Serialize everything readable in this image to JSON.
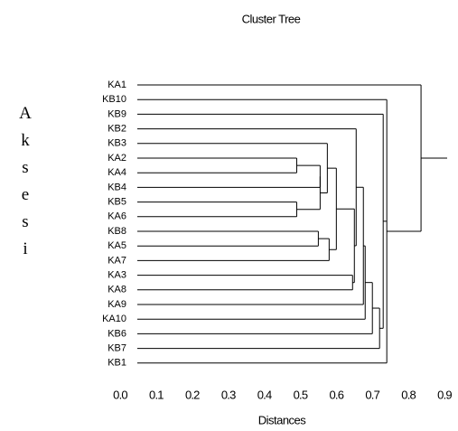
{
  "chart_data": {
    "type": "dendrogram",
    "title": "Cluster Tree",
    "xlabel": "Distances",
    "ylabel": "Aksesi",
    "xlim": [
      0,
      0.9
    ],
    "xticks": [
      {
        "value": 0,
        "label": "0.0"
      },
      0.1,
      0.2,
      0.3,
      0.4,
      0.5,
      0.6,
      0.7,
      0.8,
      0.9
    ],
    "color": "#000000",
    "tree": {
      "height": 0.835,
      "children": [
        {
          "label": "KA1"
        },
        {
          "height": 0.74,
          "children": [
            {
              "label": "KB10"
            },
            {
              "height": 0.73,
              "children": [
                {
                  "label": "KB9"
                },
                {
                  "height": 0.72,
                  "children": [
                    {
                      "height": 0.7,
                      "children": [
                        {
                          "height": 0.68,
                          "children": [
                            {
                              "height": 0.675,
                              "children": [
                                {
                                  "height": 0.655,
                                  "children": [
                                    {
                                      "label": "KB2"
                                    },
                                    {
                                      "height": 0.65,
                                      "children": [
                                        {
                                          "height": 0.6,
                                          "children": [
                                            {
                                              "height": 0.575,
                                              "children": [
                                                {
                                                  "label": "KB3"
                                                },
                                                {
                                                  "height": 0.555,
                                                  "children": [
                                                    {
                                                      "height": 0.555,
                                                      "children": [
                                                        {
                                                          "height": 0.49,
                                                          "children": [
                                                            {
                                                              "label": "KA2"
                                                            },
                                                            {
                                                              "label": "KA4"
                                                            }
                                                          ]
                                                        },
                                                        {
                                                          "label": "KB4"
                                                        }
                                                      ]
                                                    },
                                                    {
                                                      "height": 0.49,
                                                      "children": [
                                                        {
                                                          "label": "KB5"
                                                        },
                                                        {
                                                          "label": "KA6"
                                                        }
                                                      ]
                                                    }
                                                  ]
                                                }
                                              ]
                                            },
                                            {
                                              "height": 0.58,
                                              "children": [
                                                {
                                                  "height": 0.55,
                                                  "children": [
                                                    {
                                                      "label": "KB8"
                                                    },
                                                    {
                                                      "label": "KA5"
                                                    }
                                                  ]
                                                },
                                                {
                                                  "label": "KA7"
                                                }
                                              ]
                                            }
                                          ]
                                        },
                                        {
                                          "height": 0.645,
                                          "children": [
                                            {
                                              "label": "KA3"
                                            },
                                            {
                                              "label": "KA8"
                                            }
                                          ]
                                        }
                                      ]
                                    }
                                  ]
                                },
                                {
                                  "label": "KA9"
                                }
                              ]
                            },
                            {
                              "label": "KA10"
                            }
                          ]
                        },
                        {
                          "label": "KB6"
                        }
                      ]
                    },
                    {
                      "label": "KB7"
                    }
                  ]
                }
              ]
            },
            {
              "label": "KB1"
            }
          ]
        }
      ]
    }
  }
}
